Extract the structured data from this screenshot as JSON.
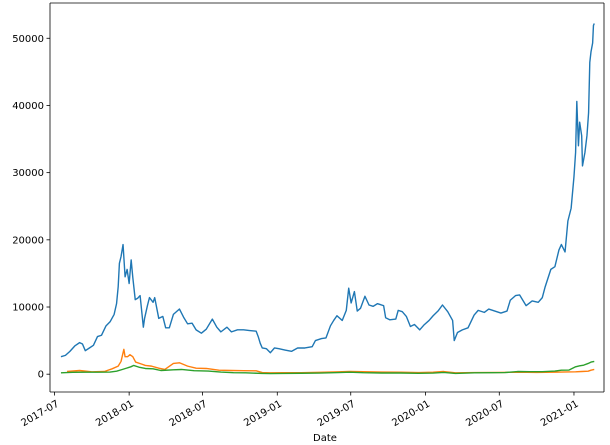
{
  "chart_data": {
    "type": "line",
    "title": "",
    "xlabel": "Date",
    "ylabel": "",
    "legend": "none",
    "grid": false,
    "x_range": [
      "2017-06-20",
      "2021-03-16"
    ],
    "ylim": [
      -2650,
      55250
    ],
    "x_ticks": [
      {
        "date": "2017-07-01",
        "label": "2017-07"
      },
      {
        "date": "2018-01-01",
        "label": "2018-01"
      },
      {
        "date": "2018-07-01",
        "label": "2018-07"
      },
      {
        "date": "2019-01-01",
        "label": "2019-01"
      },
      {
        "date": "2019-07-01",
        "label": "2019-07"
      },
      {
        "date": "2020-01-01",
        "label": "2020-01"
      },
      {
        "date": "2020-07-01",
        "label": "2020-07"
      },
      {
        "date": "2021-01-01",
        "label": "2021-01"
      }
    ],
    "y_ticks": [
      {
        "value": 0,
        "label": "0"
      },
      {
        "value": 10000,
        "label": "10000"
      },
      {
        "value": 20000,
        "label": "20000"
      },
      {
        "value": 30000,
        "label": "30000"
      },
      {
        "value": 40000,
        "label": "40000"
      },
      {
        "value": 50000,
        "label": "50000"
      }
    ],
    "series": [
      {
        "color": "#1f77b4",
        "points": [
          [
            "2017-07-17",
            2600
          ],
          [
            "2017-07-28",
            2800
          ],
          [
            "2017-08-08",
            3400
          ],
          [
            "2017-08-20",
            4200
          ],
          [
            "2017-09-01",
            4700
          ],
          [
            "2017-09-08",
            4500
          ],
          [
            "2017-09-15",
            3500
          ],
          [
            "2017-09-25",
            3900
          ],
          [
            "2017-10-05",
            4300
          ],
          [
            "2017-10-15",
            5600
          ],
          [
            "2017-10-25",
            5800
          ],
          [
            "2017-11-05",
            7200
          ],
          [
            "2017-11-15",
            7800
          ],
          [
            "2017-11-25",
            8900
          ],
          [
            "2017-12-01",
            10500
          ],
          [
            "2017-12-05",
            13000
          ],
          [
            "2017-12-08",
            16500
          ],
          [
            "2017-12-12",
            17500
          ],
          [
            "2017-12-17",
            19300
          ],
          [
            "2017-12-22",
            14500
          ],
          [
            "2017-12-27",
            15600
          ],
          [
            "2018-01-01",
            13500
          ],
          [
            "2018-01-06",
            17000
          ],
          [
            "2018-01-10",
            14400
          ],
          [
            "2018-01-16",
            11100
          ],
          [
            "2018-01-22",
            11300
          ],
          [
            "2018-01-28",
            11700
          ],
          [
            "2018-02-05",
            7000
          ],
          [
            "2018-02-08",
            8300
          ],
          [
            "2018-02-15",
            10200
          ],
          [
            "2018-02-20",
            11400
          ],
          [
            "2018-03-01",
            10700
          ],
          [
            "2018-03-05",
            11400
          ],
          [
            "2018-03-15",
            8300
          ],
          [
            "2018-03-25",
            8600
          ],
          [
            "2018-04-01",
            6900
          ],
          [
            "2018-04-10",
            6900
          ],
          [
            "2018-04-20",
            8900
          ],
          [
            "2018-05-05",
            9700
          ],
          [
            "2018-05-15",
            8500
          ],
          [
            "2018-05-25",
            7500
          ],
          [
            "2018-06-05",
            7600
          ],
          [
            "2018-06-15",
            6600
          ],
          [
            "2018-06-28",
            6100
          ],
          [
            "2018-07-10",
            6700
          ],
          [
            "2018-07-25",
            8200
          ],
          [
            "2018-08-05",
            7000
          ],
          [
            "2018-08-15",
            6300
          ],
          [
            "2018-08-30",
            7000
          ],
          [
            "2018-09-10",
            6300
          ],
          [
            "2018-09-25",
            6600
          ],
          [
            "2018-10-10",
            6600
          ],
          [
            "2018-10-25",
            6500
          ],
          [
            "2018-11-10",
            6400
          ],
          [
            "2018-11-15",
            5600
          ],
          [
            "2018-11-20",
            4600
          ],
          [
            "2018-11-25",
            3900
          ],
          [
            "2018-12-05",
            3800
          ],
          [
            "2018-12-15",
            3200
          ],
          [
            "2018-12-25",
            3900
          ],
          [
            "2019-01-05",
            3800
          ],
          [
            "2019-01-20",
            3600
          ],
          [
            "2019-02-05",
            3400
          ],
          [
            "2019-02-20",
            3900
          ],
          [
            "2019-03-10",
            3900
          ],
          [
            "2019-03-28",
            4100
          ],
          [
            "2019-04-05",
            5000
          ],
          [
            "2019-04-20",
            5300
          ],
          [
            "2019-05-01",
            5400
          ],
          [
            "2019-05-12",
            7200
          ],
          [
            "2019-05-20",
            8000
          ],
          [
            "2019-05-28",
            8700
          ],
          [
            "2019-06-10",
            8000
          ],
          [
            "2019-06-20",
            9500
          ],
          [
            "2019-06-26",
            12800
          ],
          [
            "2019-07-02",
            10600
          ],
          [
            "2019-07-10",
            12300
          ],
          [
            "2019-07-17",
            9400
          ],
          [
            "2019-07-25",
            9800
          ],
          [
            "2019-08-05",
            11600
          ],
          [
            "2019-08-15",
            10300
          ],
          [
            "2019-08-25",
            10100
          ],
          [
            "2019-09-05",
            10500
          ],
          [
            "2019-09-20",
            10200
          ],
          [
            "2019-09-25",
            8400
          ],
          [
            "2019-10-05",
            8100
          ],
          [
            "2019-10-20",
            8200
          ],
          [
            "2019-10-26",
            9500
          ],
          [
            "2019-11-05",
            9300
          ],
          [
            "2019-11-15",
            8600
          ],
          [
            "2019-11-25",
            7100
          ],
          [
            "2019-12-05",
            7400
          ],
          [
            "2019-12-18",
            6600
          ],
          [
            "2019-12-28",
            7300
          ],
          [
            "2020-01-10",
            8000
          ],
          [
            "2020-01-20",
            8700
          ],
          [
            "2020-02-01",
            9400
          ],
          [
            "2020-02-12",
            10300
          ],
          [
            "2020-02-25",
            9300
          ],
          [
            "2020-03-08",
            8000
          ],
          [
            "2020-03-12",
            5000
          ],
          [
            "2020-03-20",
            6200
          ],
          [
            "2020-04-01",
            6600
          ],
          [
            "2020-04-15",
            6900
          ],
          [
            "2020-04-30",
            8800
          ],
          [
            "2020-05-10",
            9500
          ],
          [
            "2020-05-25",
            9200
          ],
          [
            "2020-06-05",
            9700
          ],
          [
            "2020-06-20",
            9400
          ],
          [
            "2020-07-05",
            9100
          ],
          [
            "2020-07-20",
            9400
          ],
          [
            "2020-07-28",
            11000
          ],
          [
            "2020-08-10",
            11700
          ],
          [
            "2020-08-20",
            11800
          ],
          [
            "2020-09-05",
            10200
          ],
          [
            "2020-09-20",
            10900
          ],
          [
            "2020-10-05",
            10700
          ],
          [
            "2020-10-15",
            11400
          ],
          [
            "2020-10-22",
            13000
          ],
          [
            "2020-11-05",
            15600
          ],
          [
            "2020-11-15",
            16000
          ],
          [
            "2020-11-25",
            18500
          ],
          [
            "2020-12-01",
            19300
          ],
          [
            "2020-12-10",
            18200
          ],
          [
            "2020-12-17",
            22800
          ],
          [
            "2020-12-25",
            24700
          ],
          [
            "2021-01-01",
            29400
          ],
          [
            "2021-01-05",
            33000
          ],
          [
            "2021-01-08",
            40600
          ],
          [
            "2021-01-12",
            34000
          ],
          [
            "2021-01-15",
            37500
          ],
          [
            "2021-01-20",
            35500
          ],
          [
            "2021-01-22",
            31000
          ],
          [
            "2021-01-28",
            33000
          ],
          [
            "2021-02-02",
            35500
          ],
          [
            "2021-02-06",
            38900
          ],
          [
            "2021-02-09",
            46400
          ],
          [
            "2021-02-12",
            48000
          ],
          [
            "2021-02-16",
            49300
          ],
          [
            "2021-02-18",
            51900
          ],
          [
            "2021-02-20",
            52200
          ]
        ]
      },
      {
        "color": "#ff7f0e",
        "points": [
          [
            "2017-08-01",
            400
          ],
          [
            "2017-09-01",
            550
          ],
          [
            "2017-10-01",
            350
          ],
          [
            "2017-11-01",
            400
          ],
          [
            "2017-11-20",
            800
          ],
          [
            "2017-12-05",
            1200
          ],
          [
            "2017-12-12",
            1900
          ],
          [
            "2017-12-19",
            3700
          ],
          [
            "2017-12-22",
            2600
          ],
          [
            "2017-12-28",
            2600
          ],
          [
            "2018-01-03",
            2900
          ],
          [
            "2018-01-10",
            2600
          ],
          [
            "2018-01-17",
            1800
          ],
          [
            "2018-02-01",
            1500
          ],
          [
            "2018-02-10",
            1300
          ],
          [
            "2018-02-25",
            1200
          ],
          [
            "2018-03-15",
            900
          ],
          [
            "2018-03-30",
            700
          ],
          [
            "2018-04-20",
            1600
          ],
          [
            "2018-05-05",
            1700
          ],
          [
            "2018-05-25",
            1200
          ],
          [
            "2018-06-15",
            900
          ],
          [
            "2018-07-10",
            850
          ],
          [
            "2018-08-10",
            600
          ],
          [
            "2018-09-10",
            550
          ],
          [
            "2018-10-10",
            520
          ],
          [
            "2018-11-10",
            500
          ],
          [
            "2018-11-25",
            250
          ],
          [
            "2018-12-15",
            200
          ],
          [
            "2019-01-15",
            220
          ],
          [
            "2019-03-01",
            230
          ],
          [
            "2019-04-15",
            280
          ],
          [
            "2019-06-01",
            350
          ],
          [
            "2019-06-28",
            400
          ],
          [
            "2019-08-01",
            380
          ],
          [
            "2019-09-15",
            320
          ],
          [
            "2019-11-01",
            300
          ],
          [
            "2019-12-15",
            250
          ],
          [
            "2020-01-20",
            300
          ],
          [
            "2020-02-15",
            400
          ],
          [
            "2020-03-15",
            200
          ],
          [
            "2020-05-01",
            250
          ],
          [
            "2020-07-01",
            260
          ],
          [
            "2020-08-15",
            300
          ],
          [
            "2020-10-01",
            270
          ],
          [
            "2020-11-15",
            300
          ],
          [
            "2020-12-15",
            330
          ],
          [
            "2021-01-05",
            350
          ],
          [
            "2021-01-20",
            400
          ],
          [
            "2021-02-05",
            450
          ],
          [
            "2021-02-12",
            600
          ],
          [
            "2021-02-20",
            700
          ]
        ]
      },
      {
        "color": "#2ca02c",
        "points": [
          [
            "2017-07-17",
            200
          ],
          [
            "2017-08-15",
            280
          ],
          [
            "2017-09-15",
            300
          ],
          [
            "2017-10-15",
            300
          ],
          [
            "2017-11-15",
            320
          ],
          [
            "2017-12-01",
            450
          ],
          [
            "2017-12-15",
            700
          ],
          [
            "2018-01-05",
            1100
          ],
          [
            "2018-01-12",
            1300
          ],
          [
            "2018-01-25",
            1050
          ],
          [
            "2018-02-10",
            850
          ],
          [
            "2018-03-01",
            800
          ],
          [
            "2018-03-20",
            550
          ],
          [
            "2018-04-20",
            650
          ],
          [
            "2018-05-10",
            700
          ],
          [
            "2018-06-10",
            520
          ],
          [
            "2018-07-15",
            470
          ],
          [
            "2018-08-15",
            320
          ],
          [
            "2018-09-15",
            230
          ],
          [
            "2018-10-15",
            200
          ],
          [
            "2018-11-25",
            120
          ],
          [
            "2018-12-15",
            90
          ],
          [
            "2019-01-15",
            120
          ],
          [
            "2019-03-01",
            140
          ],
          [
            "2019-04-15",
            170
          ],
          [
            "2019-06-01",
            250
          ],
          [
            "2019-06-28",
            300
          ],
          [
            "2019-08-01",
            220
          ],
          [
            "2019-09-15",
            180
          ],
          [
            "2019-11-01",
            180
          ],
          [
            "2019-12-15",
            130
          ],
          [
            "2020-01-20",
            170
          ],
          [
            "2020-02-15",
            260
          ],
          [
            "2020-03-15",
            120
          ],
          [
            "2020-05-01",
            200
          ],
          [
            "2020-06-15",
            230
          ],
          [
            "2020-07-15",
            240
          ],
          [
            "2020-08-15",
            400
          ],
          [
            "2020-09-15",
            370
          ],
          [
            "2020-10-15",
            380
          ],
          [
            "2020-11-15",
            460
          ],
          [
            "2020-12-01",
            600
          ],
          [
            "2020-12-20",
            620
          ],
          [
            "2021-01-05",
            1100
          ],
          [
            "2021-01-15",
            1250
          ],
          [
            "2021-01-25",
            1350
          ],
          [
            "2021-02-05",
            1600
          ],
          [
            "2021-02-12",
            1800
          ],
          [
            "2021-02-20",
            1900
          ]
        ]
      }
    ]
  }
}
